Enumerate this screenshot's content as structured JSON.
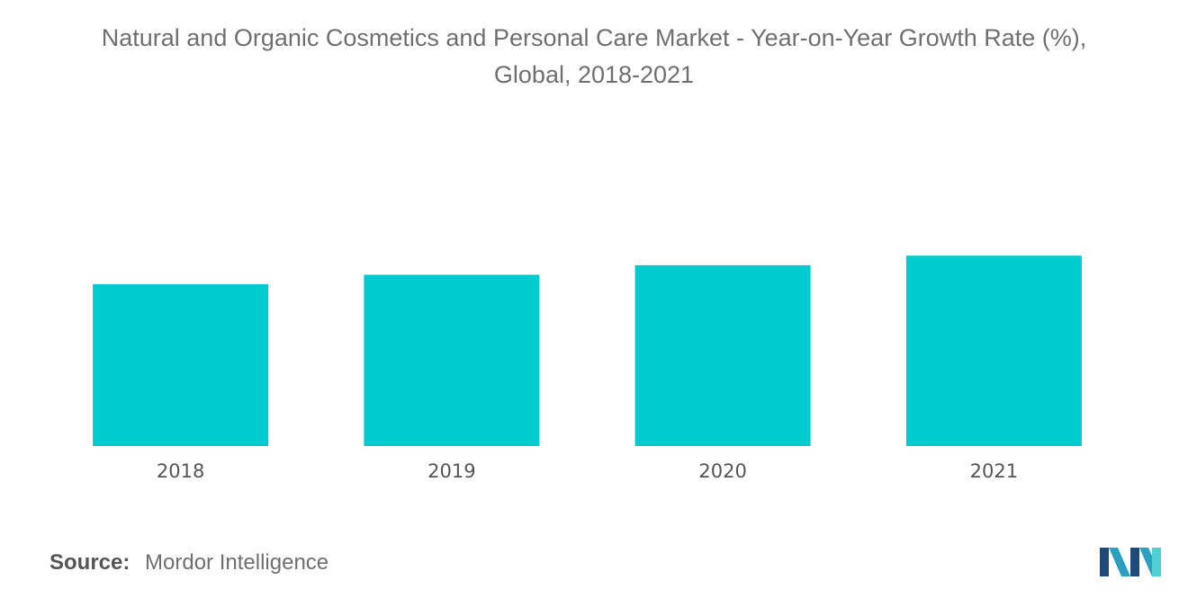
{
  "chart_data": {
    "type": "bar",
    "title": "Natural and Organic Cosmetics and Personal Care Market - Year-on-Year Growth Rate (%), Global, 2018-2021",
    "title_lines": [
      "Natural and Organic Cosmetics and Personal Care Market - Year-on-Year Growth Rate (%),",
      "Global, 2018-2021"
    ],
    "categories": [
      "2018",
      "2019",
      "2020",
      "2021"
    ],
    "values": [
      8.5,
      9.0,
      9.5,
      10.0
    ],
    "ylim": [
      0,
      12
    ],
    "xlabel": "",
    "ylabel": "",
    "grid": false,
    "legend": "none",
    "bar_color": "#00cccf"
  },
  "source": {
    "label": "Source:",
    "value": "Mordor Intelligence"
  },
  "logo": {
    "icon": "mordor-intelligence-logo-icon",
    "colors": [
      "#1e4a7a",
      "#2a9fbf",
      "#4fd0d3"
    ]
  }
}
